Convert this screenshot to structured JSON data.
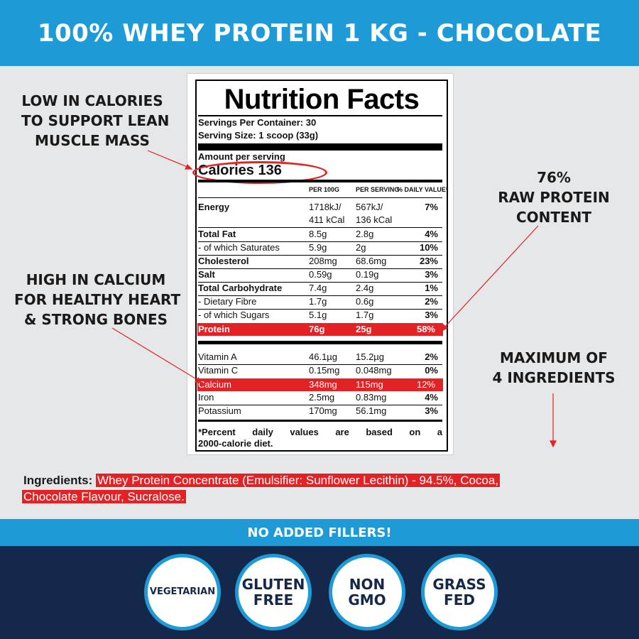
{
  "banner": {
    "title": "100% WHEY PROTEIN 1 KG - CHOCOLATE"
  },
  "callouts": {
    "calories": [
      "LOW IN CALORIES",
      "TO SUPPORT LEAN",
      "MUSCLE MASS"
    ],
    "calcium": [
      "HIGH IN CALCIUM",
      "FOR HEALTHY HEART",
      "& STRONG BONES"
    ],
    "protein": [
      "76%",
      "RAW PROTEIN",
      "CONTENT"
    ],
    "ingredients": [
      "MAXIMUM OF",
      "4 INGREDIENTS"
    ]
  },
  "label": {
    "title": "Nutrition Facts",
    "servings_per_container": "Servings Per Container: 30",
    "serving_size": "Serving Size: 1 scoop (33g)",
    "amount_per_serving": "Amount per serving",
    "calories": "Calories  136",
    "headers": {
      "per100": "PER 100G",
      "perserving": "PER SERVING",
      "dv": "% DAILY VALUE*"
    },
    "energy": {
      "name": "Energy",
      "per100_1": "1718kJ/",
      "per100_2": "411 kCal",
      "serv_1": "567kJ/",
      "serv_2": "136 kCal",
      "dv": "7%"
    },
    "rows": [
      {
        "name": "Total Fat",
        "per100": "8.5g",
        "serv": "2.8g",
        "dv": "4%",
        "bold": true
      },
      {
        "name": "- of which Saturates",
        "per100": "5.9g",
        "serv": "2g",
        "dv": "10%",
        "bold": false
      },
      {
        "name": "Cholesterol",
        "per100": "208mg",
        "serv": "68.6mg",
        "dv": "23%",
        "bold": true
      },
      {
        "name": "Salt",
        "per100": "0.59g",
        "serv": "0.19g",
        "dv": "3%",
        "bold": true
      },
      {
        "name": "Total Carbohydrate",
        "per100": "7.4g",
        "serv": "2.4g",
        "dv": "1%",
        "bold": true
      },
      {
        "name": "- Dietary Fibre",
        "per100": "1.7g",
        "serv": "0.6g",
        "dv": "2%",
        "bold": false
      },
      {
        "name": "- of which Sugars",
        "per100": "5.1g",
        "serv": "1.7g",
        "dv": "3%",
        "bold": false
      }
    ],
    "protein": {
      "name": "Protein",
      "per100": "76g",
      "serv": "25g",
      "dv": "58%"
    },
    "vitamins": [
      {
        "name": "Vitamin A",
        "per100": "46.1µg",
        "serv": "15.2µg",
        "dv": "2%"
      },
      {
        "name": "Vitamin C",
        "per100": "0.15mg",
        "serv": "0.048mg",
        "dv": "0%"
      },
      {
        "name": "Calcium",
        "per100": "348mg",
        "serv": "115mg",
        "dv": "12%"
      },
      {
        "name": "Iron",
        "per100": "2.5mg",
        "serv": "0.83mg",
        "dv": "4%"
      },
      {
        "name": "Potassium",
        "per100": "170mg",
        "serv": "56.1mg",
        "dv": "3%"
      }
    ],
    "footnote_1": "*Percent daily values are based on a",
    "footnote_2": "2000-calorie diet."
  },
  "ingredients": {
    "label": "Ingredients:",
    "line1": "Whey Protein Concentrate (Emulsifier: Sunflower Lecithin) - 94.5%, Cocoa,",
    "line2": "Chocolate Flavour, Sucralose."
  },
  "mid_banner": "NO ADDED FILLERS!",
  "badges": [
    [
      "VEGETARIAN"
    ],
    [
      "GLUTEN",
      "FREE"
    ],
    [
      "NON",
      "GMO"
    ],
    [
      "GRASS",
      "FED"
    ]
  ],
  "colors": {
    "blue": "#1e9bd7",
    "navy": "#14284b",
    "red": "#e32226",
    "background": "#e6e7e8"
  }
}
